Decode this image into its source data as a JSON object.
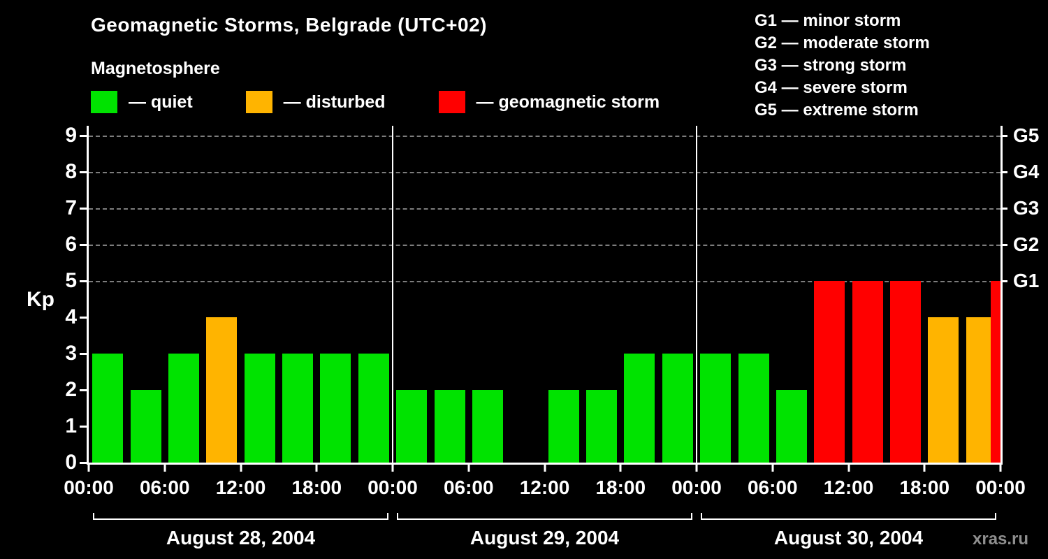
{
  "title": "Geomagnetic Storms, Belgrade (UTC+02)",
  "subtitle": "Magnetosphere",
  "legend": {
    "items": [
      {
        "name": "quiet",
        "label": "— quiet",
        "color": "#00e300"
      },
      {
        "name": "disturbed",
        "label": "— disturbed",
        "color": "#ffb400"
      },
      {
        "name": "storm",
        "label": "— geomagnetic storm",
        "color": "#ff0000"
      }
    ]
  },
  "g_legend": [
    "G1 — minor storm",
    "G2 — moderate storm",
    "G3 — strong storm",
    "G4 — severe storm",
    "G5 — extreme storm"
  ],
  "watermark": "xras.ru",
  "chart_data": {
    "type": "bar",
    "title": "Geomagnetic Storms, Belgrade (UTC+02)",
    "subtitle": "Magnetosphere",
    "ylabel": "Kp",
    "ylim": [
      0,
      9
    ],
    "yticks": [
      0,
      1,
      2,
      3,
      4,
      5,
      6,
      7,
      8,
      9
    ],
    "gridline_kps": [
      5,
      6,
      7,
      8,
      9
    ],
    "right_labels": [
      {
        "text": "G1",
        "kp": 5
      },
      {
        "text": "G2",
        "kp": 6
      },
      {
        "text": "G3",
        "kp": 7
      },
      {
        "text": "G4",
        "kp": 8
      },
      {
        "text": "G5",
        "kp": 9
      }
    ],
    "x_tick_labels": [
      "00:00",
      "06:00",
      "12:00",
      "18:00",
      "00:00",
      "06:00",
      "12:00",
      "18:00",
      "00:00",
      "06:00",
      "12:00",
      "18:00",
      "00:00"
    ],
    "hours_per_bar": 3,
    "days": [
      {
        "label": "August 28, 2004",
        "kp": [
          3,
          2,
          3,
          4,
          3,
          3,
          3,
          3
        ]
      },
      {
        "label": "August 29, 2004",
        "kp": [
          2,
          2,
          2,
          null,
          2,
          2,
          3,
          3
        ]
      },
      {
        "label": "August 30, 2004",
        "kp": [
          3,
          3,
          2,
          5,
          5,
          5,
          4,
          4
        ]
      }
    ],
    "partial_next_bar": {
      "kp": 5
    },
    "colors": {
      "quiet": "#00e300",
      "disturbed": "#ffb400",
      "storm": "#ff0000"
    },
    "category_rule": {
      "quiet_max_kp": 3,
      "disturbed_kp": 4,
      "storm_min_kp": 5
    },
    "grid": true,
    "legend_position": "top"
  }
}
